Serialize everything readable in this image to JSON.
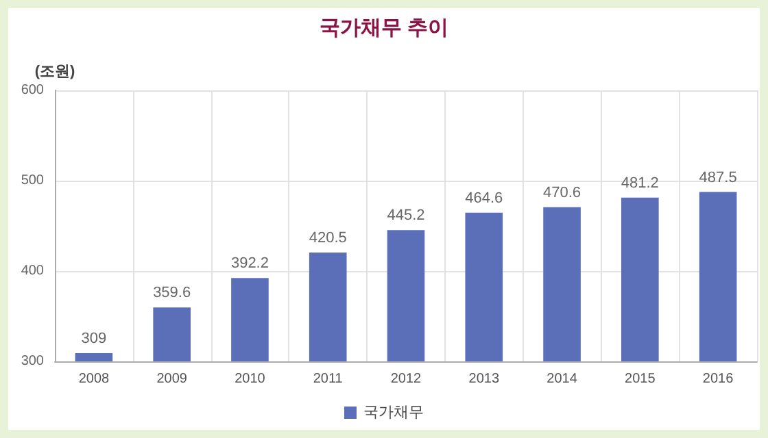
{
  "chart_data": {
    "type": "bar",
    "title": "국가채무 추이",
    "ylabel": "(조원)",
    "categories": [
      "2008",
      "2009",
      "2010",
      "2011",
      "2012",
      "2013",
      "2014",
      "2015",
      "2016"
    ],
    "series": [
      {
        "name": "국가채무",
        "color": "#5b6fb8",
        "values": [
          309,
          359.6,
          392.2,
          420.5,
          445.2,
          464.6,
          470.6,
          481.2,
          487.5
        ]
      }
    ],
    "ylim": [
      300,
      600
    ],
    "yticks": [
      300,
      400,
      500,
      600
    ],
    "grid": true,
    "legend": "bottom",
    "data_labels": true
  }
}
